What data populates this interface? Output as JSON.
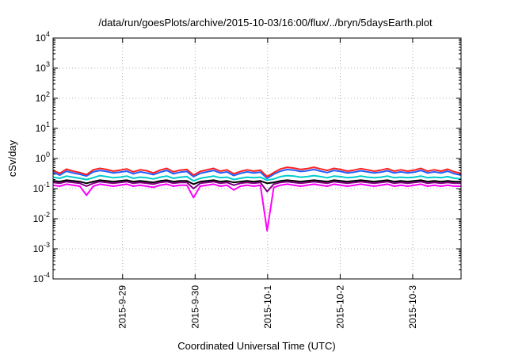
{
  "chart_data": {
    "type": "line",
    "title": "/data/run/goesPlots/archive/2015-10-03/16:00/flux/../bryn/5daysEarth.plot",
    "xlabel": "Coordinated Universal Time (UTC)",
    "ylabel": "cSv/day",
    "yscale": "log",
    "ylim": [
      0.0001,
      10000
    ],
    "y_ticks": [
      {
        "value": 0.0001,
        "base": "10",
        "exp": "-4"
      },
      {
        "value": 0.001,
        "base": "10",
        "exp": "-3"
      },
      {
        "value": 0.01,
        "base": "10",
        "exp": "-2"
      },
      {
        "value": 0.1,
        "base": "10",
        "exp": "-1"
      },
      {
        "value": 1,
        "base": "10",
        "exp": "0"
      },
      {
        "value": 10,
        "base": "10",
        "exp": "1"
      },
      {
        "value": 100,
        "base": "10",
        "exp": "2"
      },
      {
        "value": 1000,
        "base": "10",
        "exp": "3"
      },
      {
        "value": 10000,
        "base": "10",
        "exp": "4"
      }
    ],
    "xlim": [
      "2015-09-28T01:00",
      "2015-10-03T16:00"
    ],
    "x_ticks": [
      {
        "value": "2015-09-29T00:00",
        "label": "2015-9-29"
      },
      {
        "value": "2015-09-30T00:00",
        "label": "2015-9-30"
      },
      {
        "value": "2015-10-01T00:00",
        "label": "2015-10-1"
      },
      {
        "value": "2015-10-02T00:00",
        "label": "2015-10-2"
      },
      {
        "value": "2015-10-03T00:00",
        "label": "2015-10-3"
      }
    ],
    "grid": true,
    "series": [
      {
        "color": "#ff00ff",
        "values": [
          0.13,
          0.12,
          0.14,
          0.13,
          0.12,
          0.06,
          0.12,
          0.14,
          0.13,
          0.12,
          0.13,
          0.14,
          0.12,
          0.13,
          0.12,
          0.11,
          0.13,
          0.14,
          0.12,
          0.13,
          0.13,
          0.05,
          0.12,
          0.13,
          0.14,
          0.12,
          0.13,
          0.09,
          0.12,
          0.13,
          0.12,
          0.13,
          0.004,
          0.11,
          0.13,
          0.14,
          0.13,
          0.12,
          0.13,
          0.14,
          0.13,
          0.12,
          0.14,
          0.13,
          0.12,
          0.13,
          0.14,
          0.13,
          0.12,
          0.13,
          0.14,
          0.12,
          0.13,
          0.12,
          0.13,
          0.14,
          0.12,
          0.13,
          0.12,
          0.13,
          0.12,
          0.12
        ]
      },
      {
        "color": "#800080",
        "values": [
          0.16,
          0.15,
          0.17,
          0.16,
          0.15,
          0.12,
          0.15,
          0.17,
          0.16,
          0.15,
          0.16,
          0.17,
          0.15,
          0.16,
          0.15,
          0.14,
          0.16,
          0.17,
          0.15,
          0.16,
          0.16,
          0.1,
          0.15,
          0.16,
          0.17,
          0.15,
          0.16,
          0.13,
          0.15,
          0.16,
          0.15,
          0.16,
          0.08,
          0.14,
          0.16,
          0.17,
          0.16,
          0.15,
          0.16,
          0.17,
          0.16,
          0.15,
          0.17,
          0.16,
          0.15,
          0.16,
          0.17,
          0.16,
          0.15,
          0.16,
          0.17,
          0.15,
          0.16,
          0.15,
          0.16,
          0.17,
          0.15,
          0.16,
          0.15,
          0.16,
          0.15,
          0.15
        ]
      },
      {
        "color": "#000000",
        "values": [
          0.18,
          0.17,
          0.19,
          0.18,
          0.17,
          0.15,
          0.17,
          0.19,
          0.18,
          0.17,
          0.18,
          0.19,
          0.17,
          0.18,
          0.17,
          0.16,
          0.18,
          0.19,
          0.17,
          0.18,
          0.18,
          0.14,
          0.17,
          0.18,
          0.19,
          0.17,
          0.18,
          0.16,
          0.17,
          0.18,
          0.17,
          0.18,
          0.15,
          0.16,
          0.18,
          0.19,
          0.18,
          0.17,
          0.18,
          0.19,
          0.18,
          0.17,
          0.19,
          0.18,
          0.17,
          0.18,
          0.19,
          0.18,
          0.17,
          0.18,
          0.19,
          0.17,
          0.18,
          0.17,
          0.18,
          0.19,
          0.17,
          0.18,
          0.17,
          0.18,
          0.17,
          0.17
        ]
      },
      {
        "color": "#00cccc",
        "values": [
          0.24,
          0.22,
          0.26,
          0.24,
          0.22,
          0.2,
          0.23,
          0.27,
          0.25,
          0.23,
          0.24,
          0.26,
          0.22,
          0.24,
          0.23,
          0.21,
          0.24,
          0.26,
          0.22,
          0.24,
          0.25,
          0.18,
          0.22,
          0.24,
          0.26,
          0.23,
          0.24,
          0.2,
          0.22,
          0.24,
          0.23,
          0.24,
          0.19,
          0.21,
          0.25,
          0.27,
          0.26,
          0.24,
          0.25,
          0.27,
          0.25,
          0.23,
          0.26,
          0.25,
          0.23,
          0.24,
          0.26,
          0.24,
          0.23,
          0.24,
          0.26,
          0.23,
          0.24,
          0.23,
          0.24,
          0.26,
          0.23,
          0.24,
          0.23,
          0.25,
          0.22,
          0.21
        ]
      },
      {
        "color": "#2060ff",
        "values": [
          0.35,
          0.28,
          0.38,
          0.33,
          0.3,
          0.26,
          0.36,
          0.4,
          0.37,
          0.33,
          0.35,
          0.38,
          0.31,
          0.36,
          0.33,
          0.29,
          0.35,
          0.4,
          0.31,
          0.35,
          0.37,
          0.25,
          0.32,
          0.36,
          0.4,
          0.33,
          0.36,
          0.27,
          0.32,
          0.36,
          0.33,
          0.35,
          0.22,
          0.3,
          0.38,
          0.43,
          0.41,
          0.37,
          0.39,
          0.43,
          0.38,
          0.34,
          0.4,
          0.37,
          0.33,
          0.35,
          0.39,
          0.36,
          0.33,
          0.35,
          0.39,
          0.33,
          0.36,
          0.33,
          0.35,
          0.4,
          0.33,
          0.36,
          0.33,
          0.38,
          0.31,
          0.28
        ]
      },
      {
        "color": "#ff2020",
        "values": [
          0.4,
          0.32,
          0.44,
          0.38,
          0.34,
          0.29,
          0.42,
          0.47,
          0.43,
          0.38,
          0.41,
          0.45,
          0.36,
          0.42,
          0.39,
          0.33,
          0.41,
          0.47,
          0.36,
          0.41,
          0.43,
          0.28,
          0.37,
          0.42,
          0.47,
          0.38,
          0.42,
          0.31,
          0.37,
          0.42,
          0.38,
          0.41,
          0.25,
          0.34,
          0.45,
          0.51,
          0.48,
          0.43,
          0.46,
          0.51,
          0.45,
          0.4,
          0.47,
          0.43,
          0.38,
          0.41,
          0.46,
          0.42,
          0.38,
          0.41,
          0.46,
          0.38,
          0.42,
          0.38,
          0.41,
          0.47,
          0.38,
          0.42,
          0.38,
          0.44,
          0.36,
          0.32
        ]
      }
    ]
  }
}
